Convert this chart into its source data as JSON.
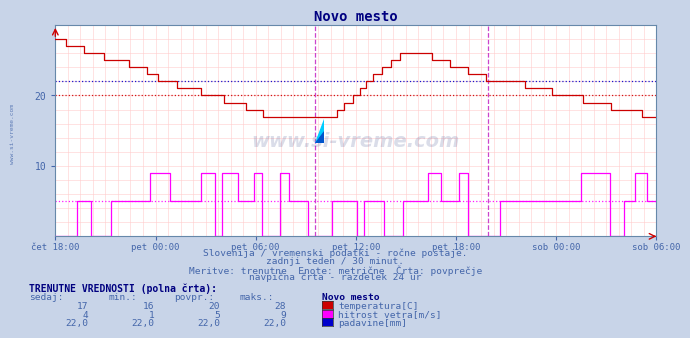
{
  "title": "Novo mesto",
  "bg_color": "#c8d4e8",
  "plot_bg_color": "#ffffff",
  "grid_color_pink": "#ffcccc",
  "grid_color_blue": "#ccccff",
  "title_color": "#000080",
  "text_color": "#4466aa",
  "temp_color": "#cc0000",
  "wind_color": "#ff00ff",
  "rain_color": "#0000cc",
  "ylim": [
    0,
    30
  ],
  "yticks": [
    10,
    20
  ],
  "xtick_labels": [
    "čet 18:00",
    "pet 00:00",
    "pet 06:00",
    "pet 12:00",
    "pet 18:00",
    "sob 00:00",
    "sob 06:00"
  ],
  "subtitle_lines": [
    "Slovenija / vremenski podatki - ročne postaje.",
    "zadnji teden / 30 minut.",
    "Meritve: trenutne  Enote: metrične  Črta: povprečje",
    "navpična črta - razdelek 24 ur"
  ],
  "table_header": "TRENUTNE VREDNOSTI (polna črta):",
  "col_headers": [
    "sedaj:",
    "min.:",
    "povpr.:",
    "maks.:",
    "Novo mesto"
  ],
  "row1": [
    "17",
    "16",
    "20",
    "28"
  ],
  "row2": [
    "4",
    "1",
    "5",
    "9"
  ],
  "row3": [
    "22,0",
    "22,0",
    "22,0",
    "22,0"
  ],
  "legend_labels": [
    "temperatura[C]",
    "hitrost vetra[m/s]",
    "padavine[mm]"
  ],
  "legend_colors": [
    "#cc0000",
    "#ff00ff",
    "#0000cc"
  ],
  "avg_temp": 20,
  "avg_wind": 5,
  "avg_rain": 22.0,
  "n_points": 336,
  "vline_positions": [
    0.435,
    0.72
  ],
  "logo_color_yellow": "#ffff00",
  "logo_color_cyan": "#00ccff",
  "logo_color_blue": "#0055cc"
}
